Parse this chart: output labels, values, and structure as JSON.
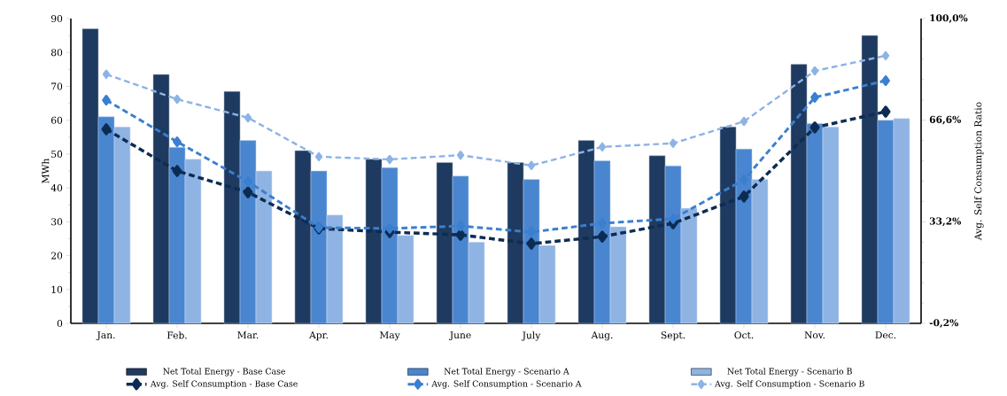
{
  "chart_data": {
    "type": "bar",
    "categories": [
      "Jan.",
      "Feb.",
      "Mar.",
      "Apr.",
      "May",
      "June",
      "July",
      "Aug.",
      "Sept.",
      "Oct.",
      "Nov.",
      "Dec."
    ],
    "ylabel": "MWh",
    "y2label": "Avg. Self Consumption Ratio",
    "ylim": [
      0,
      90
    ],
    "yticks": [
      0,
      10,
      20,
      30,
      40,
      50,
      60,
      70,
      80,
      90
    ],
    "y2lim": [
      -0.2,
      100.0
    ],
    "y2ticks": [
      {
        "value": -0.2,
        "label": "-0,2%"
      },
      {
        "value": 33.2,
        "label": "33,2%"
      },
      {
        "value": 66.6,
        "label": "66,6%"
      },
      {
        "value": 100.0,
        "label": "100,0%"
      }
    ],
    "legend": "bottom",
    "marker": "diamond",
    "line_style": "dashed",
    "series": [
      {
        "name": "Net Total Energy - Base Case",
        "type": "bar",
        "color": "#1f3a60",
        "values": [
          87,
          73.5,
          68.5,
          51,
          48.5,
          47.5,
          47.5,
          54,
          49.5,
          58,
          76.5,
          85
        ]
      },
      {
        "name": "Net Total Energy - Scenario A",
        "type": "bar",
        "color": "#4a86d0",
        "values": [
          61,
          52,
          54,
          45,
          46,
          43.5,
          42.5,
          48,
          46.5,
          51.5,
          59,
          60
        ]
      },
      {
        "name": "Net Total Energy - Scenario B",
        "type": "bar",
        "color": "#8fb4e3",
        "values": [
          58,
          48.5,
          45,
          32,
          26,
          24,
          23,
          28.5,
          34,
          42.5,
          58,
          60.5
        ]
      },
      {
        "name": "Avg. Self Consumption - Base Case",
        "type": "line",
        "axis": "y2",
        "color": "#0d2c54",
        "values": [
          63.6,
          49.9,
          42.9,
          31.0,
          29.8,
          28.9,
          26.0,
          28.3,
          32.7,
          41.5,
          64.2,
          69.4
        ]
      },
      {
        "name": "Avg. Self Consumption - Scenario A",
        "type": "line",
        "axis": "y2",
        "color": "#3a7fd0",
        "values": [
          73.2,
          59.5,
          46.4,
          31.3,
          31.0,
          31.8,
          29.8,
          32.7,
          34.2,
          47.0,
          74.1,
          79.6
        ]
      },
      {
        "name": "Avg. Self Consumption - Scenario B",
        "type": "line",
        "axis": "y2",
        "color": "#8db3e6",
        "values": [
          81.7,
          73.5,
          67.4,
          54.6,
          53.7,
          55.1,
          51.7,
          57.8,
          59.0,
          66.2,
          82.8,
          87.8
        ]
      }
    ]
  }
}
